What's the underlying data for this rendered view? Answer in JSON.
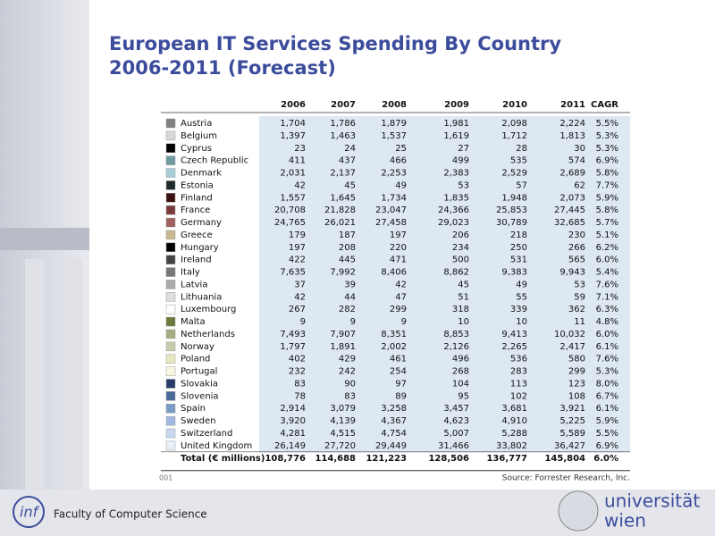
{
  "slide": {
    "title_lines": [
      "European IT Services Spending By Country",
      "2006-2011 (Forecast)"
    ],
    "table": {
      "columns": [
        "2006",
        "2007",
        "2008",
        "2009",
        "2010",
        "2011",
        "CAGR"
      ],
      "rows": [
        {
          "country": "Austria",
          "color": "#808080",
          "values": [
            "1,704",
            "1,786",
            "1,879",
            "1,981",
            "2,098",
            "2,224",
            "5.5%"
          ]
        },
        {
          "country": "Belgium",
          "color": "#d9d9d9",
          "values": [
            "1,397",
            "1,463",
            "1,537",
            "1,619",
            "1,712",
            "1,813",
            "5.3%"
          ]
        },
        {
          "country": "Cyprus",
          "color": "#000000",
          "values": [
            "23",
            "24",
            "25",
            "27",
            "28",
            "30",
            "5.3%"
          ]
        },
        {
          "country": "Czech Republic",
          "color": "#6f9aa0",
          "values": [
            "411",
            "437",
            "466",
            "499",
            "535",
            "574",
            "6.9%"
          ]
        },
        {
          "country": "Denmark",
          "color": "#a9cfd8",
          "values": [
            "2,031",
            "2,137",
            "2,253",
            "2,383",
            "2,529",
            "2,689",
            "5.8%"
          ]
        },
        {
          "country": "Estonia",
          "color": "#1f2a2a",
          "values": [
            "42",
            "45",
            "49",
            "53",
            "57",
            "62",
            "7.7%"
          ]
        },
        {
          "country": "Finland",
          "color": "#3a1010",
          "values": [
            "1,557",
            "1,645",
            "1,734",
            "1,835",
            "1,948",
            "2,073",
            "5.9%"
          ]
        },
        {
          "country": "France",
          "color": "#7a3a3a",
          "values": [
            "20,708",
            "21,828",
            "23,047",
            "24,366",
            "25,853",
            "27,445",
            "5.8%"
          ]
        },
        {
          "country": "Germany",
          "color": "#a06060",
          "values": [
            "24,765",
            "26,021",
            "27,458",
            "29,023",
            "30,789",
            "32,685",
            "5.7%"
          ]
        },
        {
          "country": "Greece",
          "color": "#c8b890",
          "values": [
            "179",
            "187",
            "197",
            "206",
            "218",
            "230",
            "5.1%"
          ]
        },
        {
          "country": "Hungary",
          "color": "#000000",
          "values": [
            "197",
            "208",
            "220",
            "234",
            "250",
            "266",
            "6.2%"
          ]
        },
        {
          "country": "Ireland",
          "color": "#444444",
          "values": [
            "422",
            "445",
            "471",
            "500",
            "531",
            "565",
            "6.0%"
          ]
        },
        {
          "country": "Italy",
          "color": "#777777",
          "values": [
            "7,635",
            "7,992",
            "8,406",
            "8,862",
            "9,383",
            "9,943",
            "5.4%"
          ]
        },
        {
          "country": "Latvia",
          "color": "#aaaaaa",
          "values": [
            "37",
            "39",
            "42",
            "45",
            "49",
            "53",
            "7.6%"
          ]
        },
        {
          "country": "Lithuania",
          "color": "#dddddd",
          "values": [
            "42",
            "44",
            "47",
            "51",
            "55",
            "59",
            "7.1%"
          ]
        },
        {
          "country": "Luxembourg",
          "color": "#ffffff",
          "values": [
            "267",
            "282",
            "299",
            "318",
            "339",
            "362",
            "6.3%"
          ]
        },
        {
          "country": "Malta",
          "color": "#6b7a3a",
          "values": [
            "9",
            "9",
            "9",
            "10",
            "10",
            "11",
            "4.8%"
          ]
        },
        {
          "country": "Netherlands",
          "color": "#a8ad80",
          "values": [
            "7,493",
            "7,907",
            "8,351",
            "8,853",
            "9,413",
            "10,032",
            "6.0%"
          ]
        },
        {
          "country": "Norway",
          "color": "#c8ccaa",
          "values": [
            "1,797",
            "1,891",
            "2,002",
            "2,126",
            "2,265",
            "2,417",
            "6.1%"
          ]
        },
        {
          "country": "Poland",
          "color": "#e8e8c0",
          "values": [
            "402",
            "429",
            "461",
            "496",
            "536",
            "580",
            "7.6%"
          ]
        },
        {
          "country": "Portugal",
          "color": "#f8f8e0",
          "values": [
            "232",
            "242",
            "254",
            "268",
            "283",
            "299",
            "5.3%"
          ]
        },
        {
          "country": "Slovakia",
          "color": "#2a3d6a",
          "values": [
            "83",
            "90",
            "97",
            "104",
            "113",
            "123",
            "8.0%"
          ]
        },
        {
          "country": "Slovenia",
          "color": "#4a6a9a",
          "values": [
            "78",
            "83",
            "89",
            "95",
            "102",
            "108",
            "6.7%"
          ]
        },
        {
          "country": "Spain",
          "color": "#7a9ac8",
          "values": [
            "2,914",
            "3,079",
            "3,258",
            "3,457",
            "3,681",
            "3,921",
            "6.1%"
          ]
        },
        {
          "country": "Sweden",
          "color": "#a0b8e0",
          "values": [
            "3,920",
            "4,139",
            "4,367",
            "4,623",
            "4,910",
            "5,225",
            "5.9%"
          ]
        },
        {
          "country": "Switzerland",
          "color": "#c8d8f0",
          "values": [
            "4,281",
            "4,515",
            "4,754",
            "5,007",
            "5,288",
            "5,589",
            "5.5%"
          ]
        },
        {
          "country": "United Kingdom",
          "color": "#e8f0f8",
          "values": [
            "26,149",
            "27,720",
            "29,449",
            "31,466",
            "33,802",
            "36,427",
            "6.9%"
          ]
        }
      ],
      "total": {
        "label": "Total (€ millions)",
        "values": [
          "108,776",
          "114,688",
          "121,223",
          "128,506",
          "136,777",
          "145,804",
          "6.0%"
        ]
      },
      "left_note": "001",
      "source": "Source: Forrester Research, Inc."
    },
    "footer": {
      "logo": "inf",
      "faculty": "Faculty of Computer Science",
      "university": [
        "universität",
        "wien"
      ]
    }
  }
}
